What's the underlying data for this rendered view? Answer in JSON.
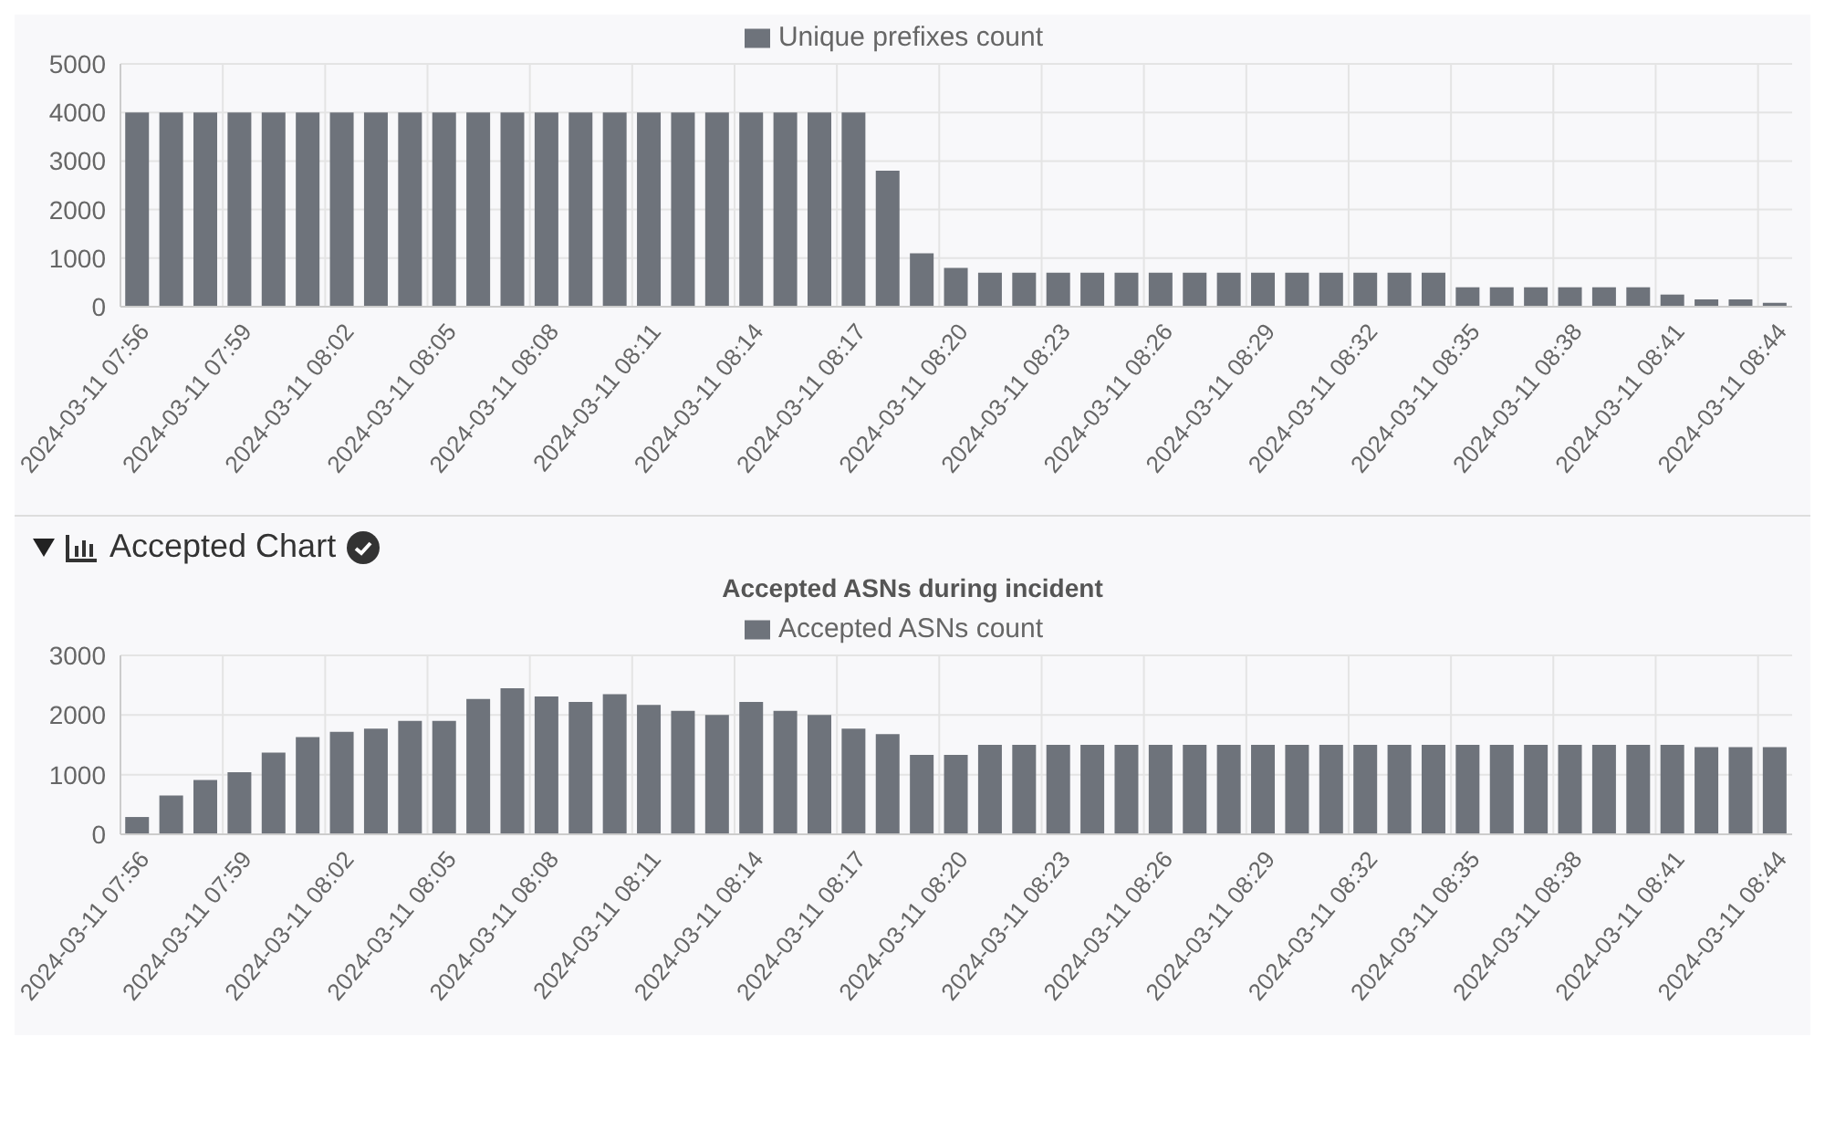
{
  "chart_data": [
    {
      "type": "bar",
      "categories": [
        "2024-03-11 07:56",
        null,
        null,
        "2024-03-11 07:59",
        null,
        null,
        "2024-03-11 08:02",
        null,
        null,
        "2024-03-11 08:05",
        null,
        null,
        "2024-03-11 08:08",
        null,
        null,
        "2024-03-11 08:11",
        null,
        null,
        "2024-03-11 08:14",
        null,
        null,
        "2024-03-11 08:17",
        null,
        null,
        "2024-03-11 08:20",
        null,
        null,
        "2024-03-11 08:23",
        null,
        null,
        "2024-03-11 08:26",
        null,
        null,
        "2024-03-11 08:29",
        null,
        null,
        "2024-03-11 08:32",
        null,
        null,
        "2024-03-11 08:35",
        null,
        null,
        "2024-03-11 08:38",
        null,
        null,
        "2024-03-11 08:41",
        null,
        null,
        "2024-03-11 08:44"
      ],
      "series": [
        {
          "name": "Unique prefixes count",
          "color": "#6e737b",
          "values": [
            4000,
            4000,
            4000,
            4000,
            4000,
            4000,
            4000,
            4000,
            4000,
            4000,
            4000,
            4000,
            4000,
            4000,
            4000,
            4000,
            4000,
            4000,
            4000,
            4000,
            4000,
            4000,
            2800,
            1100,
            800,
            700,
            700,
            700,
            700,
            700,
            700,
            700,
            700,
            700,
            700,
            700,
            700,
            700,
            700,
            400,
            400,
            400,
            400,
            400,
            400,
            250,
            150,
            150,
            80
          ]
        }
      ],
      "ylim": [
        0,
        5000
      ],
      "yticks": [
        0,
        1000,
        2000,
        3000,
        4000,
        5000
      ],
      "grid": true,
      "legend": "top"
    },
    {
      "type": "bar",
      "title": "Accepted ASNs during incident",
      "annotations": [
        "Accepted Chart"
      ],
      "categories": [
        "2024-03-11 07:56",
        null,
        null,
        "2024-03-11 07:59",
        null,
        null,
        "2024-03-11 08:02",
        null,
        null,
        "2024-03-11 08:05",
        null,
        null,
        "2024-03-11 08:08",
        null,
        null,
        "2024-03-11 08:11",
        null,
        null,
        "2024-03-11 08:14",
        null,
        null,
        "2024-03-11 08:17",
        null,
        null,
        "2024-03-11 08:20",
        null,
        null,
        "2024-03-11 08:23",
        null,
        null,
        "2024-03-11 08:26",
        null,
        null,
        "2024-03-11 08:29",
        null,
        null,
        "2024-03-11 08:32",
        null,
        null,
        "2024-03-11 08:35",
        null,
        null,
        "2024-03-11 08:38",
        null,
        null,
        "2024-03-11 08:41",
        null,
        null,
        "2024-03-11 08:44"
      ],
      "series": [
        {
          "name": "Accepted ASNs count",
          "color": "#6e737b",
          "values": [
            290,
            650,
            910,
            1040,
            1370,
            1630,
            1720,
            1770,
            1900,
            1900,
            2270,
            2450,
            2310,
            2220,
            2350,
            2170,
            2070,
            2000,
            2220,
            2070,
            2000,
            1770,
            1680,
            1330,
            1330,
            1500,
            1500,
            1500,
            1500,
            1500,
            1500,
            1500,
            1500,
            1500,
            1500,
            1500,
            1500,
            1500,
            1500,
            1500,
            1500,
            1500,
            1500,
            1500,
            1500,
            1500,
            1460,
            1460,
            1460
          ]
        }
      ],
      "ylim": [
        0,
        3000
      ],
      "yticks": [
        0,
        1000,
        2000,
        3000
      ],
      "grid": true,
      "legend": "top"
    }
  ]
}
